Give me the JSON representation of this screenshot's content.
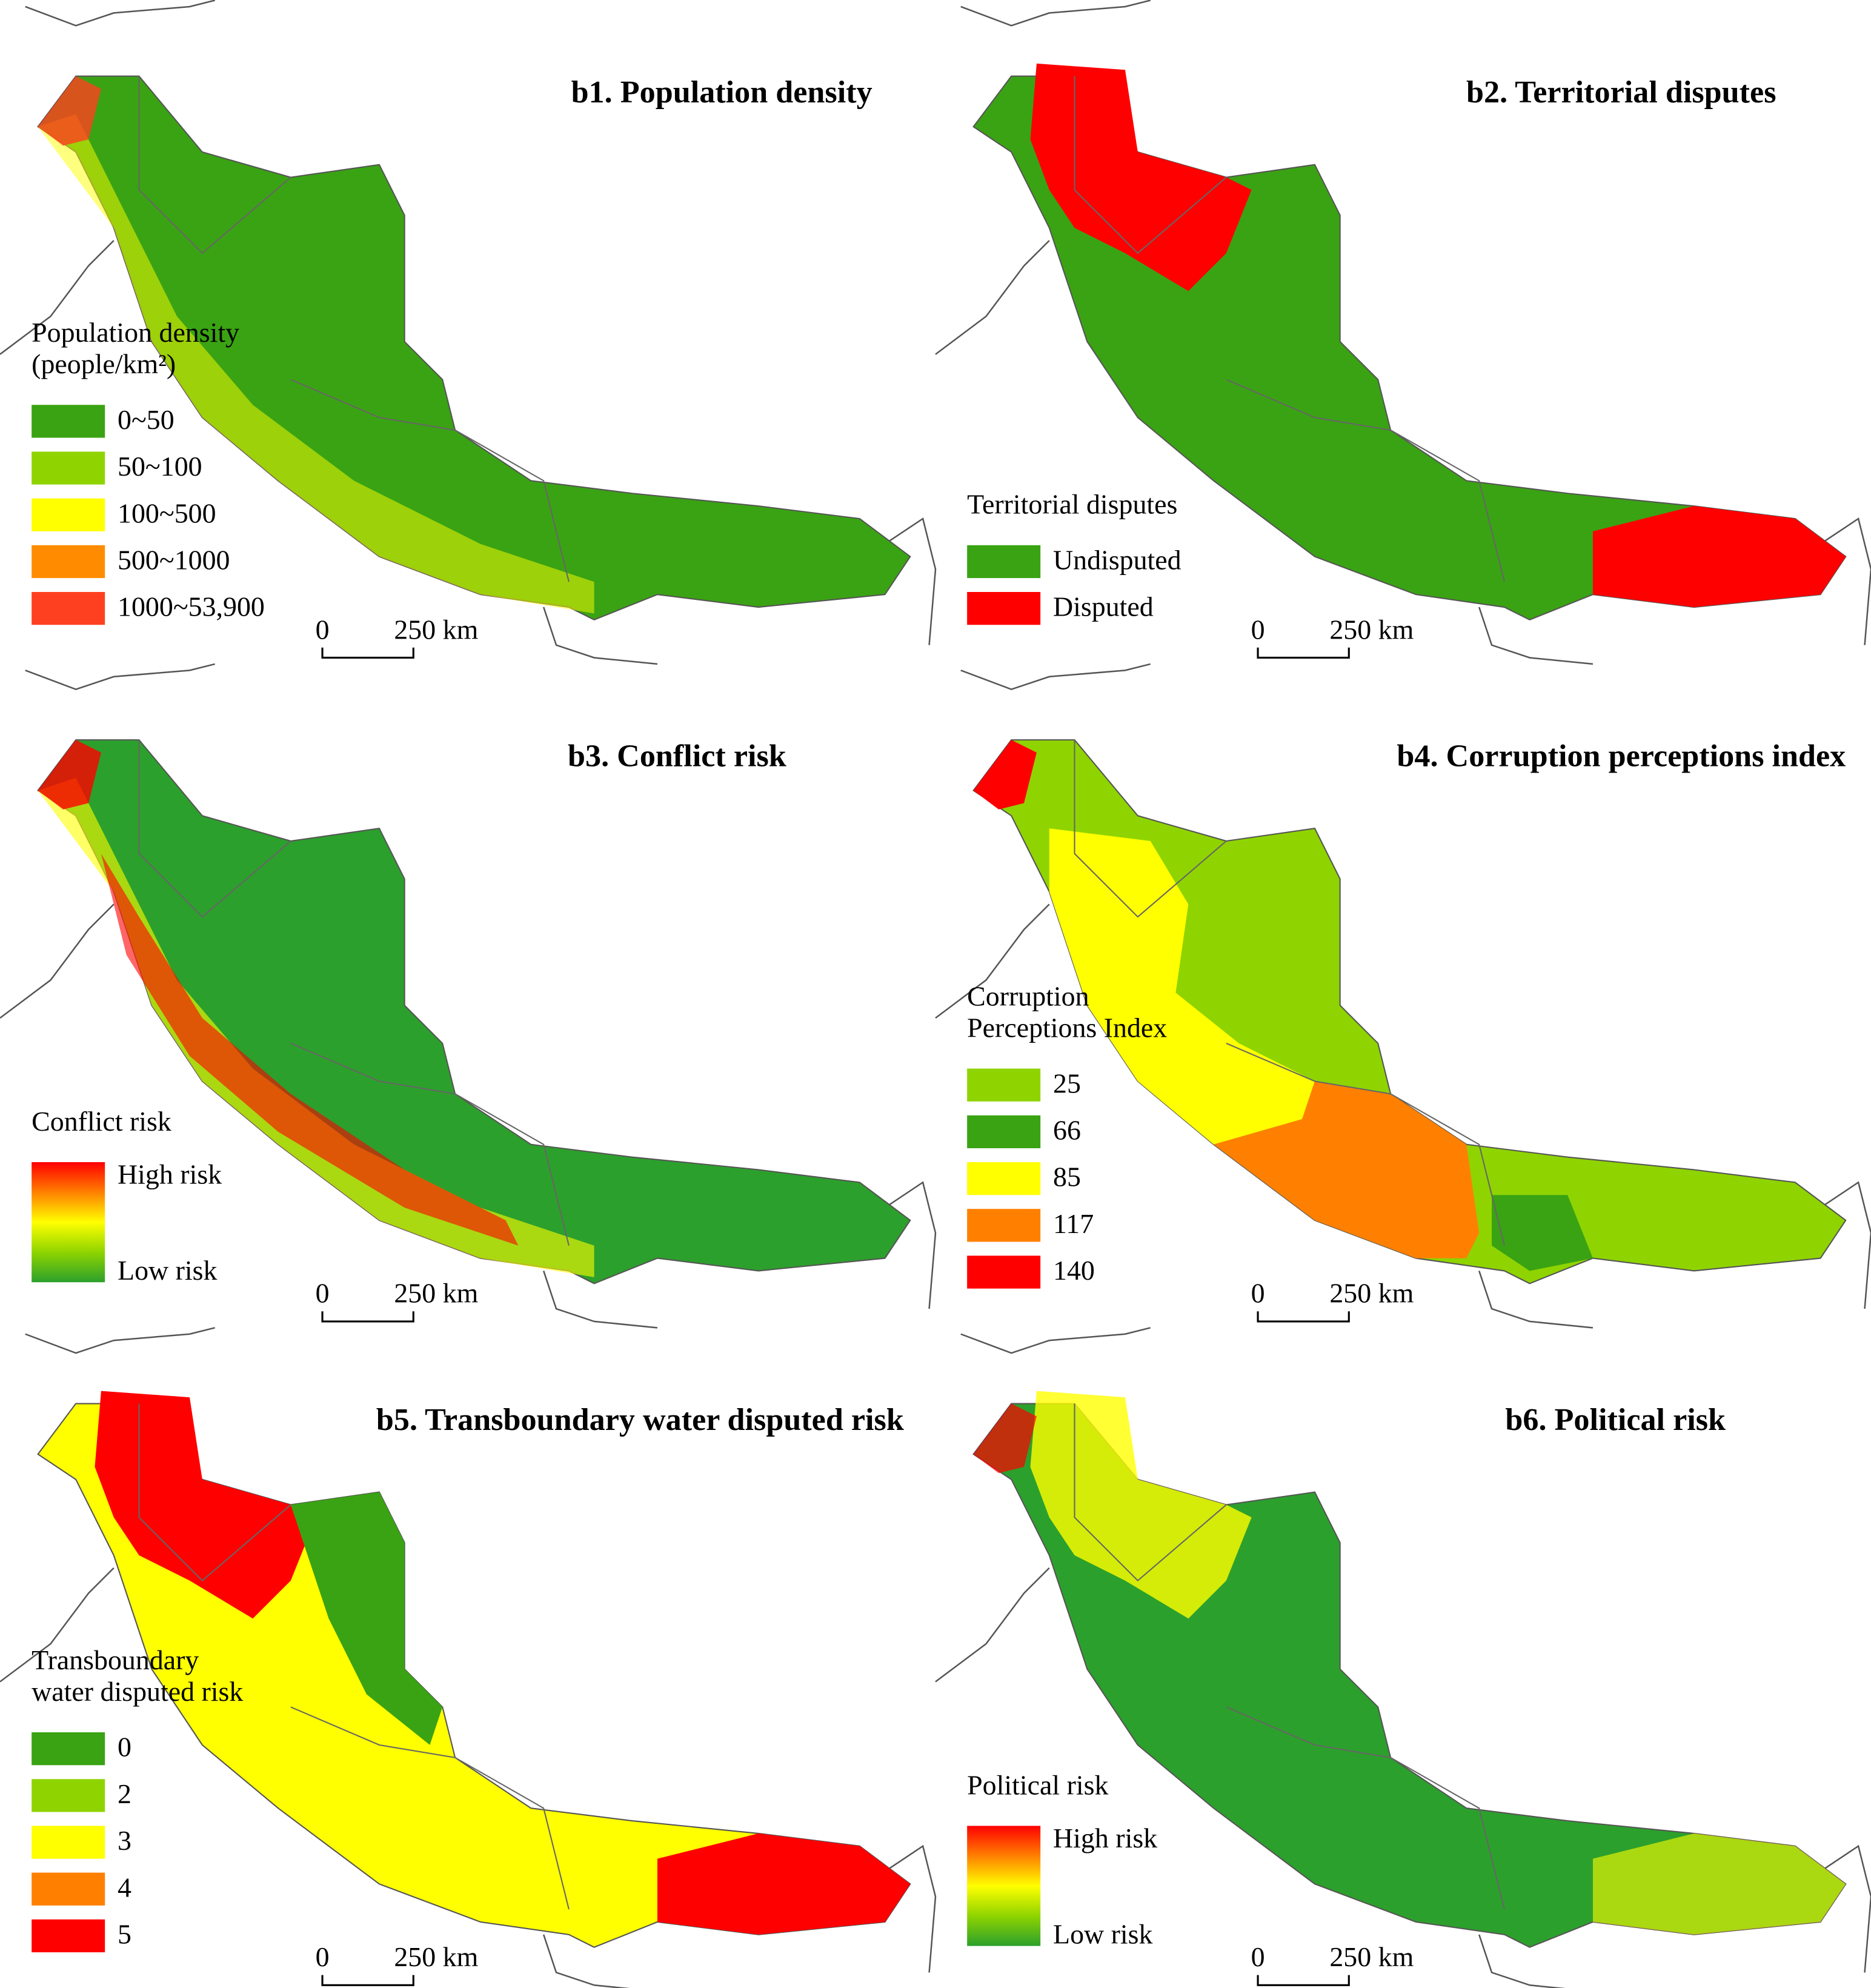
{
  "panels": [
    {
      "title": "b1. Population density",
      "legend": {
        "title": [
          "Population density",
          "(people/km²)"
        ],
        "items": [
          {
            "label": "0~50",
            "color": "#3aa313"
          },
          {
            "label": "50~100",
            "color": "#8fd400"
          },
          {
            "label": "100~500",
            "color": "#ffff00"
          },
          {
            "label": "500~1000",
            "color": "#ff8c00"
          },
          {
            "label": "1000~53,900",
            "color": "#ff4020"
          }
        ]
      },
      "scale_bar": {
        "start": 0,
        "end": "250 km"
      }
    },
    {
      "title": "b2. Territorial disputes",
      "legend": {
        "title": [
          "Territorial disputes"
        ],
        "items": [
          {
            "label": "Undisputed",
            "color": "#3aa313"
          },
          {
            "label": "Disputed",
            "color": "#ff0000"
          }
        ]
      },
      "scale_bar": {
        "start": 0,
        "end": "250 km"
      }
    },
    {
      "title": "b3. Conflict risk",
      "legend": {
        "title": [
          "Conflict risk"
        ],
        "high": "High risk",
        "low": "Low risk",
        "colors": [
          "#ff0000",
          "#ff8000",
          "#ffff00",
          "#8fd400",
          "#2ca02c"
        ]
      },
      "scale_bar": {
        "start": 0,
        "end": "250 km"
      }
    },
    {
      "title": "b4. Corruption perceptions index",
      "legend": {
        "title": [
          "Corruption",
          "Perceptions Index"
        ],
        "items": [
          {
            "label": 25,
            "color": "#8fd400"
          },
          {
            "label": 66,
            "color": "#3aa313"
          },
          {
            "label": 85,
            "color": "#ffff00"
          },
          {
            "label": 117,
            "color": "#ff8000"
          },
          {
            "label": 140,
            "color": "#ff0000"
          }
        ]
      },
      "scale_bar": {
        "start": 0,
        "end": "250 km"
      }
    },
    {
      "title": "b5. Transboundary water disputed risk",
      "legend": {
        "title": [
          "Transboundary",
          "water disputed risk"
        ],
        "items": [
          {
            "label": 0,
            "color": "#3aa313"
          },
          {
            "label": 2,
            "color": "#8fd400"
          },
          {
            "label": 3,
            "color": "#ffff00"
          },
          {
            "label": 4,
            "color": "#ff8000"
          },
          {
            "label": 5,
            "color": "#ff0000"
          }
        ]
      },
      "scale_bar": {
        "start": 0,
        "end": "250 km"
      }
    },
    {
      "title": "b6. Political risk",
      "legend": {
        "title": [
          "Political risk"
        ],
        "high": "High risk",
        "low": "Low risk",
        "colors": [
          "#ff0000",
          "#ff8000",
          "#ffff00",
          "#8fd400",
          "#2ca02c"
        ]
      },
      "scale_bar": {
        "start": 0,
        "end": "250 km"
      }
    }
  ]
}
